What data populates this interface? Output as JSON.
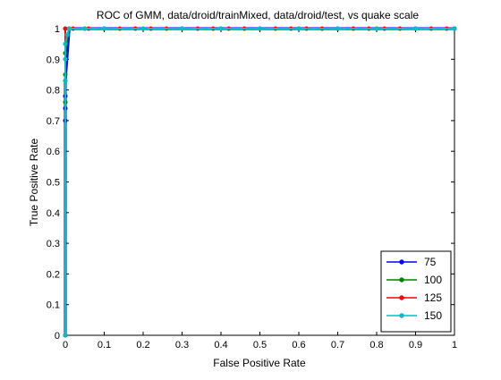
{
  "chart_data": {
    "type": "line",
    "title": "ROC of GMM, data/droid/trainMixed, data/droid/test, vs quake scale",
    "xlabel": "False Positive Rate",
    "ylabel": "True Positive Rate",
    "xlim": [
      0,
      1
    ],
    "ylim": [
      0,
      1
    ],
    "xticks": [
      "0",
      "0.1",
      "0.2",
      "0.3",
      "0.4",
      "0.5",
      "0.6",
      "0.7",
      "0.8",
      "0.9",
      "1"
    ],
    "yticks": [
      "0",
      "0.1",
      "0.2",
      "0.3",
      "0.4",
      "0.5",
      "0.6",
      "0.7",
      "0.8",
      "0.9",
      "1"
    ],
    "grid": false,
    "legend_position": "bottom-right",
    "series": [
      {
        "name": "75",
        "color": "#0000ff",
        "x": [
          0,
          0,
          0,
          0,
          0,
          0.01,
          0.05,
          0.1,
          0.2,
          0.3,
          0.4,
          0.5,
          0.6,
          0.7,
          0.8,
          0.9,
          1
        ],
        "y": [
          0,
          0.7,
          0.74,
          0.78,
          0.83,
          1,
          1,
          1,
          1,
          1,
          1,
          1,
          1,
          1,
          1,
          1,
          1
        ]
      },
      {
        "name": "100",
        "color": "#008000",
        "x": [
          0,
          0,
          0,
          0,
          0.01,
          0.05,
          0.1,
          0.2,
          0.3,
          0.4,
          0.5,
          0.6,
          0.7,
          0.8,
          0.9,
          1
        ],
        "y": [
          0,
          0.76,
          0.85,
          0.92,
          1,
          1,
          1,
          1,
          1,
          1,
          1,
          1,
          1,
          1,
          1,
          1
        ]
      },
      {
        "name": "125",
        "color": "#ff0000",
        "x": [
          0,
          0,
          0.02,
          0.06,
          0.1,
          0.14,
          0.18,
          0.22,
          0.26,
          0.3,
          0.34,
          0.38,
          0.42,
          0.46,
          0.5,
          0.54,
          0.58,
          0.62,
          0.66,
          0.7,
          0.74,
          0.78,
          0.82,
          0.86,
          0.9,
          0.94,
          0.98,
          1
        ],
        "y": [
          0,
          1,
          1,
          1,
          1,
          1,
          1,
          1,
          1,
          1,
          1,
          1,
          1,
          1,
          1,
          1,
          1,
          1,
          1,
          1,
          1,
          1,
          1,
          1,
          1,
          1,
          1,
          1
        ]
      },
      {
        "name": "150",
        "color": "#00bfbf",
        "x": [
          0,
          0,
          0,
          0,
          0.005,
          0.01,
          0.05,
          0.1,
          0.2,
          0.3,
          0.4,
          0.5,
          0.6,
          0.7,
          0.8,
          0.9,
          1
        ],
        "y": [
          0,
          0.83,
          0.9,
          0.95,
          0.98,
          1,
          1,
          1,
          1,
          1,
          1,
          1,
          1,
          1,
          1,
          1,
          1
        ]
      }
    ]
  }
}
